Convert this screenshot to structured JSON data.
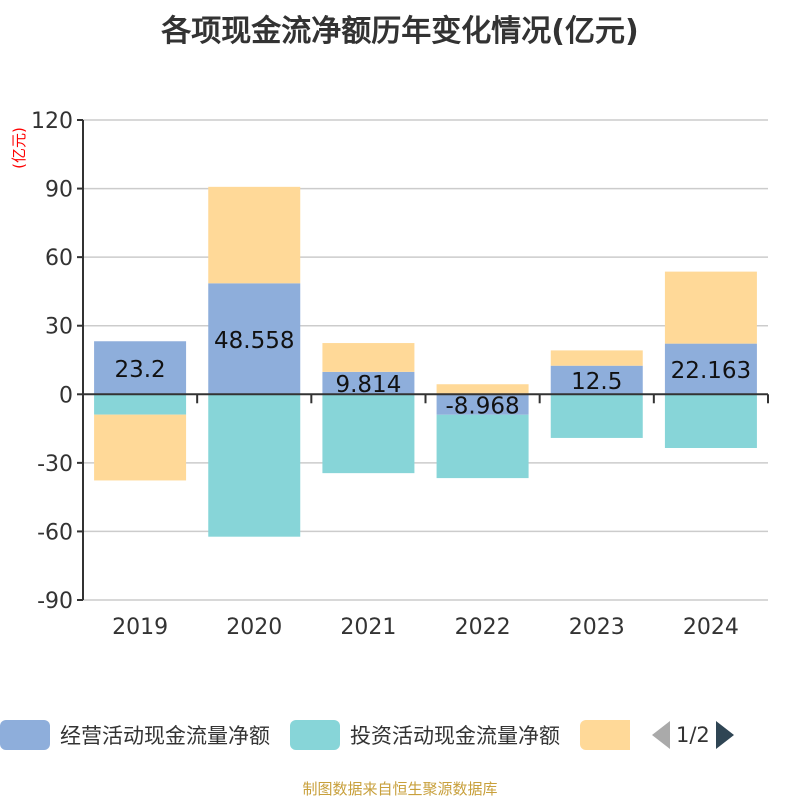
{
  "title": "各项现金流净额历年变化情况(亿元)",
  "chart_data": {
    "type": "bar",
    "stacked": true,
    "title": "各项现金流净额历年变化情况(亿元)",
    "ylabel": "(亿元)",
    "ylim": [
      -90,
      120
    ],
    "yticks": [
      -90,
      -60,
      -30,
      0,
      30,
      60,
      90,
      120
    ],
    "grid": true,
    "legend_position": "bottom",
    "categories": [
      "2019",
      "2020",
      "2021",
      "2022",
      "2023",
      "2024"
    ],
    "series": [
      {
        "name": "经营活动现金流量净额",
        "color": "#8eaedb",
        "values": [
          23.2,
          48.558,
          9.814,
          -8.968,
          12.5,
          22.163
        ],
        "labels": [
          "23.2",
          "48.558",
          "9.814",
          "-8.968",
          "12.5",
          "22.163"
        ]
      },
      {
        "name": "投资活动现金流量净额",
        "color": "#87d5d8",
        "values": [
          -8.9,
          -62.3,
          -34.5,
          -27.7,
          -19.1,
          -23.5
        ]
      },
      {
        "color": "#ffd998",
        "values": [
          -28.8,
          42.2,
          12.6,
          4.4,
          6.7,
          31.5
        ]
      }
    ]
  },
  "legend": {
    "page": "1/2"
  },
  "footer": "制图数据来自恒生聚源数据库"
}
